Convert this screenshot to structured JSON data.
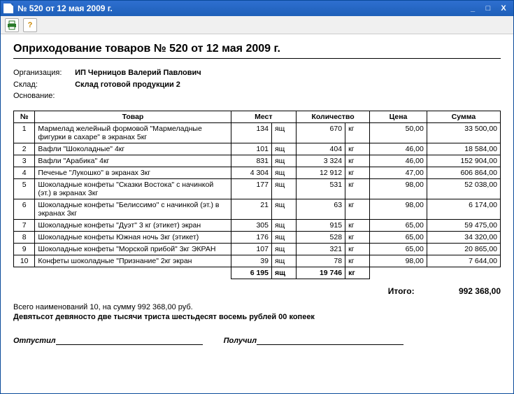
{
  "window": {
    "title": "№ 520 от 12 мая 2009 г."
  },
  "doc": {
    "heading": "Оприходование товаров № 520 от 12 мая 2009 г.",
    "meta": {
      "org_label": "Организация:",
      "org_value": "ИП Черницов Валерий Павлович",
      "wh_label": "Склад:",
      "wh_value": "Склад готовой продукции 2",
      "basis_label": "Основание:",
      "basis_value": ""
    },
    "columns": {
      "no": "№",
      "name": "Товар",
      "places": "Мест",
      "qty": "Количество",
      "price": "Цена",
      "sum": "Сумма"
    },
    "rows": [
      {
        "no": "1",
        "name": "Мармелад желейный формовой \"Мармеладные фигурки в сахаре\" в экранах 5кг",
        "places": "134",
        "places_u": "ящ",
        "qty": "670",
        "qty_u": "кг",
        "price": "50,00",
        "sum": "33 500,00"
      },
      {
        "no": "2",
        "name": "Вафли \"Шоколадные\" 4кг",
        "places": "101",
        "places_u": "ящ",
        "qty": "404",
        "qty_u": "кг",
        "price": "46,00",
        "sum": "18 584,00"
      },
      {
        "no": "3",
        "name": "Вафли \"Арабика\" 4кг",
        "places": "831",
        "places_u": "ящ",
        "qty": "3 324",
        "qty_u": "кг",
        "price": "46,00",
        "sum": "152 904,00"
      },
      {
        "no": "4",
        "name": "Печенье \"Лукошко\" в экранах 3кг",
        "places": "4 304",
        "places_u": "ящ",
        "qty": "12 912",
        "qty_u": "кг",
        "price": "47,00",
        "sum": "606 864,00"
      },
      {
        "no": "5",
        "name": "Шоколадные конфеты \"Сказки Востока\" с начинкой (эт.) в экранах 3кг",
        "places": "177",
        "places_u": "ящ",
        "qty": "531",
        "qty_u": "кг",
        "price": "98,00",
        "sum": "52 038,00"
      },
      {
        "no": "6",
        "name": "Шоколадные конфеты \"Белиссимо\" с начинкой (эт.) в экранах 3кг",
        "places": "21",
        "places_u": "ящ",
        "qty": "63",
        "qty_u": "кг",
        "price": "98,00",
        "sum": "6 174,00"
      },
      {
        "no": "7",
        "name": "Шоколадные конфеты \"Дуэт\"  3 кг (этикет) экран",
        "places": "305",
        "places_u": "ящ",
        "qty": "915",
        "qty_u": "кг",
        "price": "65,00",
        "sum": "59 475,00"
      },
      {
        "no": "8",
        "name": "Шоколадные конфеты Южная ночь 3кг (этикет)",
        "places": "176",
        "places_u": "ящ",
        "qty": "528",
        "qty_u": "кг",
        "price": "65,00",
        "sum": "34 320,00"
      },
      {
        "no": "9",
        "name": "Шоколадные конфеты \"Морской прибой\"  3кг ЭКРАН",
        "places": "107",
        "places_u": "ящ",
        "qty": "321",
        "qty_u": "кг",
        "price": "65,00",
        "sum": "20 865,00"
      },
      {
        "no": "10",
        "name": "Конфеты шоколадные \"Признание\" 2кг экран",
        "places": "39",
        "places_u": "ящ",
        "qty": "78",
        "qty_u": "кг",
        "price": "98,00",
        "sum": "7 644,00"
      }
    ],
    "totals": {
      "places": "6 195",
      "places_u": "ящ",
      "qty": "19 746",
      "qty_u": "кг"
    },
    "itogo_label": "Итого:",
    "itogo_value": "992 368,00",
    "count_line": "Всего наименований 10, на сумму 992 368,00 руб.",
    "amount_words": "Девятьсот девяносто две тысячи триста шестьдесят восемь рублей 00 копеек",
    "released_label": "Отпустил",
    "received_label": "Получил"
  }
}
